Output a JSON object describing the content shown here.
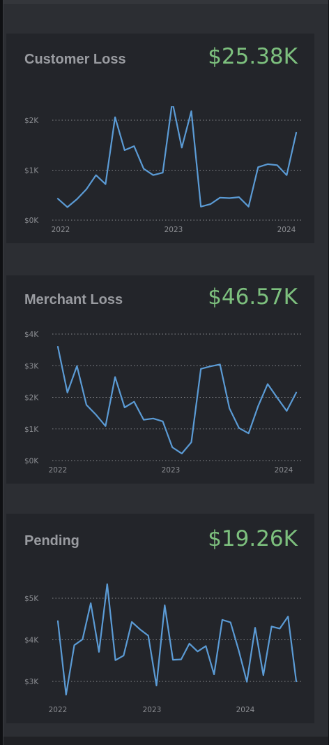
{
  "colors": {
    "line": "#5b9bd5",
    "value": "#7dc07e",
    "title": "#9a9ca1",
    "grid": "#888a8f"
  },
  "cards": [
    {
      "title": "Customer Loss",
      "value": "$25.38K"
    },
    {
      "title": "Merchant Loss",
      "value": "$46.57K"
    },
    {
      "title": "Pending",
      "value": "$19.26K"
    }
  ],
  "chart_data": [
    {
      "type": "line",
      "title": "Customer Loss",
      "x_ticks": [
        "2022",
        "2023",
        "2024"
      ],
      "y_ticks": [
        "$0K",
        "$1K",
        "$2K"
      ],
      "ylim": [
        0,
        2000
      ],
      "grid": true,
      "series": [
        {
          "values": [
            430,
            260,
            420,
            620,
            900,
            720,
            2060,
            1400,
            1480,
            1030,
            900,
            950,
            2370,
            1450,
            2180,
            270,
            320,
            450,
            440,
            460,
            270,
            1060,
            1120,
            1100,
            900,
            1750
          ]
        }
      ]
    },
    {
      "type": "line",
      "title": "Merchant Loss",
      "x_ticks": [
        "2022",
        "2023",
        "2024"
      ],
      "y_ticks": [
        "$0K",
        "$1K",
        "$2K",
        "$3K",
        "$4K"
      ],
      "ylim": [
        0,
        4000
      ],
      "grid": true,
      "series": [
        {
          "values": [
            3600,
            2150,
            2990,
            1760,
            1450,
            1090,
            2640,
            1680,
            1860,
            1290,
            1330,
            1240,
            420,
            220,
            580,
            2900,
            2980,
            3040,
            1650,
            1030,
            860,
            1720,
            2420,
            1990,
            1570,
            2150
          ]
        }
      ]
    },
    {
      "type": "line",
      "title": "Pending",
      "x_ticks": [
        "2022",
        "2023",
        "2024"
      ],
      "y_ticks": [
        "$3K",
        "$4K",
        "$5K"
      ],
      "ylim": [
        3000,
        5000
      ],
      "grid": true,
      "series": [
        {
          "values": [
            4450,
            2680,
            3870,
            4010,
            4880,
            3710,
            5340,
            3510,
            3620,
            4430,
            4250,
            4100,
            2900,
            4830,
            3520,
            3530,
            3910,
            3720,
            3850,
            3170,
            4480,
            4420,
            3750,
            2990,
            4290,
            3150,
            4320,
            4270,
            4560,
            3000
          ]
        }
      ]
    }
  ]
}
